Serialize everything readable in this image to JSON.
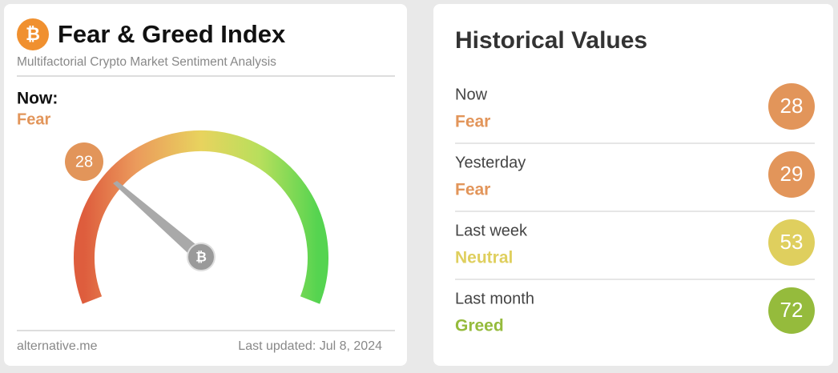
{
  "left_card": {
    "title": "Fear & Greed Index",
    "subtitle": "Multifactorial Crypto Market Sentiment Analysis",
    "now_label": "Now:",
    "now_classification": "Fear",
    "now_value": 28,
    "now_color": "#e2955a",
    "source": "alternative.me",
    "last_updated": "Last updated: Jul 8, 2024"
  },
  "historical": {
    "title": "Historical Values",
    "rows": [
      {
        "label": "Now",
        "classification": "Fear",
        "value": 28,
        "color": "#e2955a"
      },
      {
        "label": "Yesterday",
        "classification": "Fear",
        "value": 29,
        "color": "#e2955a"
      },
      {
        "label": "Last week",
        "classification": "Neutral",
        "value": 53,
        "color": "#dfcf5e"
      },
      {
        "label": "Last month",
        "classification": "Greed",
        "value": 72,
        "color": "#95bb3c"
      }
    ]
  }
}
